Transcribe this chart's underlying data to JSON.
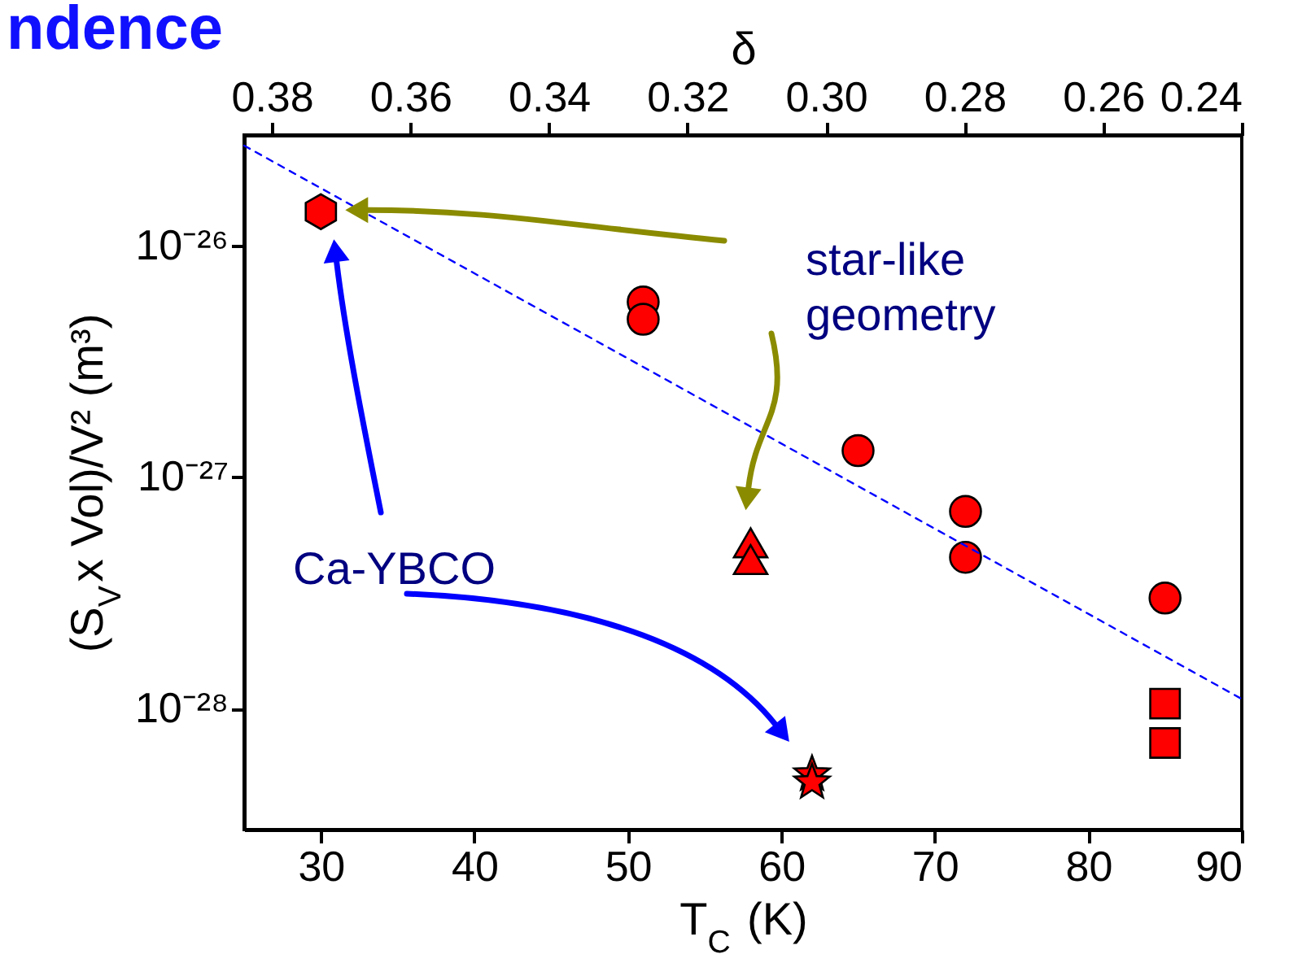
{
  "chart_data": {
    "type": "scatter",
    "title": "ndence",
    "xlabel": "T$_{C}$ (K)",
    "ylabel": "(S$_{V}$x Vol)/V² (m³)",
    "x2label": "δ",
    "xlim": [
      25,
      90
    ],
    "xticks": [
      30,
      40,
      50,
      60,
      70,
      80,
      90
    ],
    "x2lim": [
      0.384,
      0.24
    ],
    "x2ticks": [
      {
        "value": 0.38,
        "label": "0.38"
      },
      {
        "value": 0.36,
        "label": "0.36"
      },
      {
        "value": 0.34,
        "label": "0.34"
      },
      {
        "value": 0.32,
        "label": "0.32"
      },
      {
        "value": 0.3,
        "label": "0.30"
      },
      {
        "value": 0.28,
        "label": "0.28"
      },
      {
        "value": 0.26,
        "label": "0.26"
      },
      {
        "value": 0.24,
        "label": "0.24"
      }
    ],
    "ylim": [
      3e-29,
      3e-26
    ],
    "yticks": [
      {
        "value": 1e-28,
        "label": "10⁻²⁸"
      },
      {
        "value": 1e-27,
        "label": "10⁻²⁷"
      },
      {
        "value": 1e-26,
        "label": "10⁻²⁶"
      }
    ],
    "log": "y",
    "annotations": [
      "star-like geometry",
      "Ca-YBCO"
    ],
    "series": [
      {
        "marker": "circle",
        "color": "#ff0000",
        "x": [
          51,
          51,
          65,
          72,
          72,
          85
        ],
        "values": [
          5.7e-27,
          4.8e-27,
          1.3e-27,
          7.1e-28,
          4.5e-28,
          3e-28
        ]
      },
      {
        "color": "#ff0000",
        "x": [
          30
        ],
        "values": [
          1.4e-26
        ]
      },
      {
        "marker": "triangle",
        "color": "#ff0000",
        "x": [
          58,
          58
        ],
        "values": [
          5.2e-28,
          4.4e-28
        ]
      },
      {
        "marker": "square",
        "color": "#ff0000",
        "x": [
          85,
          85
        ],
        "values": [
          1.05e-28,
          7.1e-29
        ]
      },
      {
        "marker": "star",
        "color": "#ff0000",
        "x": [
          62,
          62
        ],
        "values": [
          5.2e-29,
          4.8e-29
        ]
      },
      {
        "type": "line",
        "marker": "none",
        "line_style": "dashed",
        "color": "#0000ff",
        "x": [
          25,
          90
        ],
        "values": [
          2.7e-26,
          1.1e-28
        ]
      }
    ]
  }
}
